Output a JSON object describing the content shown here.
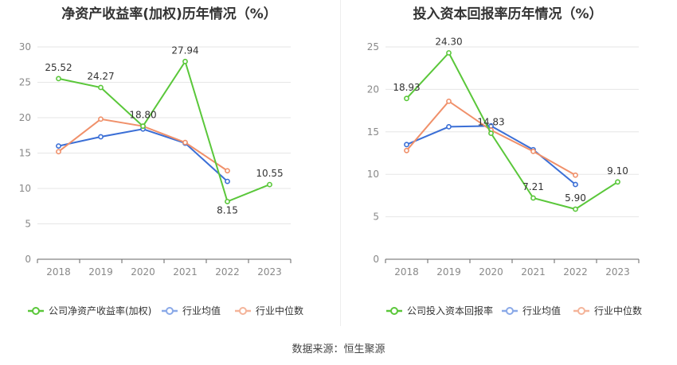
{
  "footer": {
    "source_label": "数据来源：恒生聚源"
  },
  "colors": {
    "company": "#5ac73a",
    "average": "#3b6fd6",
    "median": "#f0906a",
    "legend_company": "#5ac73a",
    "legend_average": "#8aa9e8",
    "legend_median": "#f4b49a"
  },
  "chart_data": [
    {
      "type": "line",
      "title": "净资产收益率(加权)历年情况（%）",
      "categories": [
        "2018",
        "2019",
        "2020",
        "2021",
        "2022",
        "2023"
      ],
      "ylim": [
        0,
        30
      ],
      "yticks": [
        0,
        5,
        10,
        15,
        20,
        25,
        30
      ],
      "grid": true,
      "legend_position": "bottom",
      "series": [
        {
          "name": "公司净资产收益率(加权)",
          "values": [
            25.52,
            24.27,
            18.8,
            27.94,
            8.15,
            10.55
          ],
          "labels": [
            "25.52",
            "24.27",
            "18.80",
            "27.94",
            "8.15",
            "10.55"
          ]
        },
        {
          "name": "行业均值",
          "values": [
            16.0,
            17.3,
            18.4,
            16.4,
            11.0,
            null
          ]
        },
        {
          "name": "行业中位数",
          "values": [
            15.2,
            19.8,
            18.8,
            16.5,
            12.5,
            null
          ]
        }
      ]
    },
    {
      "type": "line",
      "title": "投入资本回报率历年情况（%）",
      "categories": [
        "2018",
        "2019",
        "2020",
        "2021",
        "2022",
        "2023"
      ],
      "ylim": [
        0,
        25
      ],
      "yticks": [
        0,
        5,
        10,
        15,
        20,
        25
      ],
      "grid": true,
      "legend_position": "bottom",
      "series": [
        {
          "name": "公司投入资本回报率",
          "values": [
            18.93,
            24.3,
            14.83,
            7.21,
            5.9,
            9.1
          ],
          "labels": [
            "18.93",
            "24.30",
            "14.83",
            "7.21",
            "5.90",
            "9.10"
          ]
        },
        {
          "name": "行业均值",
          "values": [
            13.5,
            15.6,
            15.7,
            12.9,
            8.8,
            null
          ]
        },
        {
          "name": "行业中位数",
          "values": [
            12.8,
            18.6,
            15.2,
            12.7,
            9.9,
            null
          ]
        }
      ]
    }
  ]
}
